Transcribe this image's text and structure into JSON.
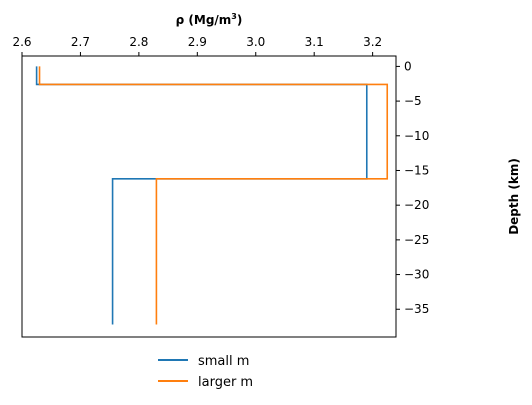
{
  "chart_data": {
    "type": "line",
    "xlabel_prefix": "ρ (Mg/m",
    "xlabel_sup": "3",
    "xlabel_suffix": ")",
    "ylabel": "Depth (km)",
    "xlim": [
      2.6,
      3.24
    ],
    "ylim": [
      -39,
      1.5
    ],
    "x_ticks": [
      2.6,
      2.7,
      2.8,
      2.9,
      3.0,
      3.1,
      3.2
    ],
    "x_tick_labels": [
      "2.6",
      "2.7",
      "2.8",
      "2.9",
      "3.0",
      "3.1",
      "3.2"
    ],
    "y_ticks": [
      0,
      -5,
      -10,
      -15,
      -20,
      -25,
      -30,
      -35
    ],
    "y_tick_labels": [
      "0",
      "−5",
      "−10",
      "−15",
      "−20",
      "−25",
      "−30",
      "−35"
    ],
    "x_axis_position": "top",
    "y_axis_position": "right",
    "grid": false,
    "legend_position": "bottom-center",
    "series": [
      {
        "name": "small m",
        "color": "#1f77b4",
        "x": [
          2.625,
          2.625,
          3.19,
          3.19,
          2.755,
          2.755
        ],
        "y": [
          0,
          -2.6,
          -2.6,
          -16.2,
          -16.2,
          -37.2
        ]
      },
      {
        "name": "larger m",
        "color": "#ff7f0e",
        "x": [
          2.63,
          2.63,
          3.225,
          3.225,
          2.83,
          2.83
        ],
        "y": [
          0,
          -2.6,
          -2.6,
          -16.2,
          -16.2,
          -37.2
        ]
      }
    ]
  }
}
